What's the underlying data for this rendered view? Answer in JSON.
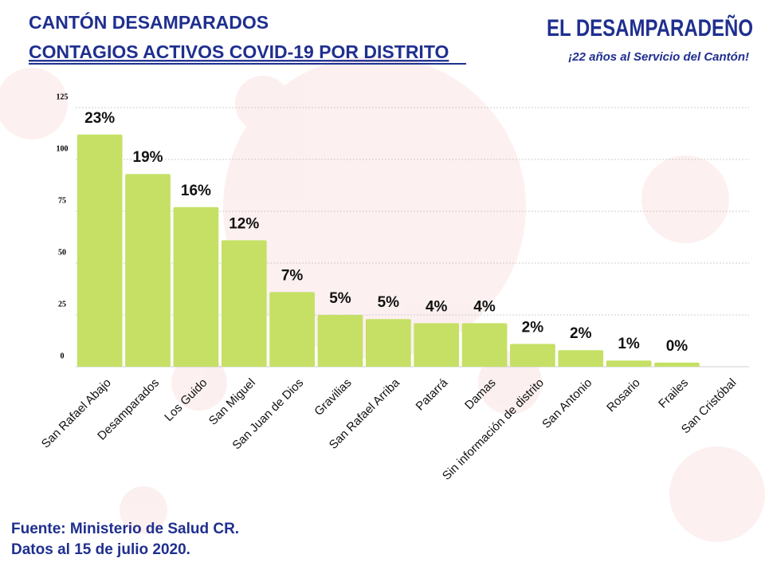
{
  "chart_data": {
    "type": "bar",
    "title": "CANTÓN DESAMPARADOS",
    "subtitle": "CONTAGIOS ACTIVOS COVID-19 POR DISTRITO",
    "brand": "EL DESAMPARADEÑO",
    "slogan": "¡22 años al Servicio del Cantón!",
    "source": [
      "Fuente: Ministerio de Salud CR.",
      "Datos al  15 de julio 2020."
    ],
    "categories": [
      "San Rafael Abajo",
      "Desamparados",
      "Los Guido",
      "San Miguel",
      "San Juan de Dios",
      "Gravilias",
      "San Rafael Arriba",
      "Patarrá",
      "Damas",
      "Sin información de distrito",
      "San Antonio",
      "Rosario",
      "Frailes",
      "San Cristóbal"
    ],
    "values": [
      112,
      93,
      77,
      61,
      36,
      25,
      23,
      21,
      21,
      11,
      8,
      3,
      2,
      0
    ],
    "percent_labels": [
      "23%",
      "19%",
      "16%",
      "12%",
      "7%",
      "5%",
      "5%",
      "4%",
      "4%",
      "2%",
      "2%",
      "1%",
      "0%",
      null
    ],
    "color": "#c5e065",
    "ylim": [
      0,
      125
    ],
    "yticks": [
      0,
      25,
      50,
      75,
      100,
      125
    ],
    "grid": true
  }
}
